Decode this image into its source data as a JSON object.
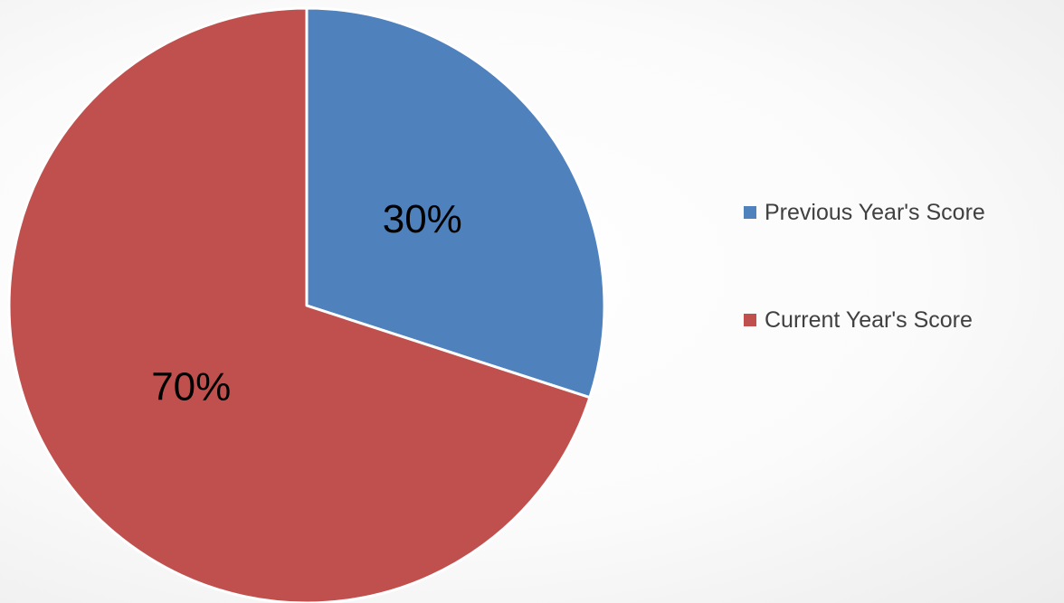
{
  "chart_data": {
    "type": "pie",
    "title": "",
    "categories": [
      "Previous Year's Score",
      "Current Year's Score"
    ],
    "values": [
      30,
      70
    ],
    "labels": [
      "30%",
      "70%"
    ],
    "colors": [
      "#4f81bd",
      "#c0504d"
    ],
    "legend_placement": "right"
  }
}
